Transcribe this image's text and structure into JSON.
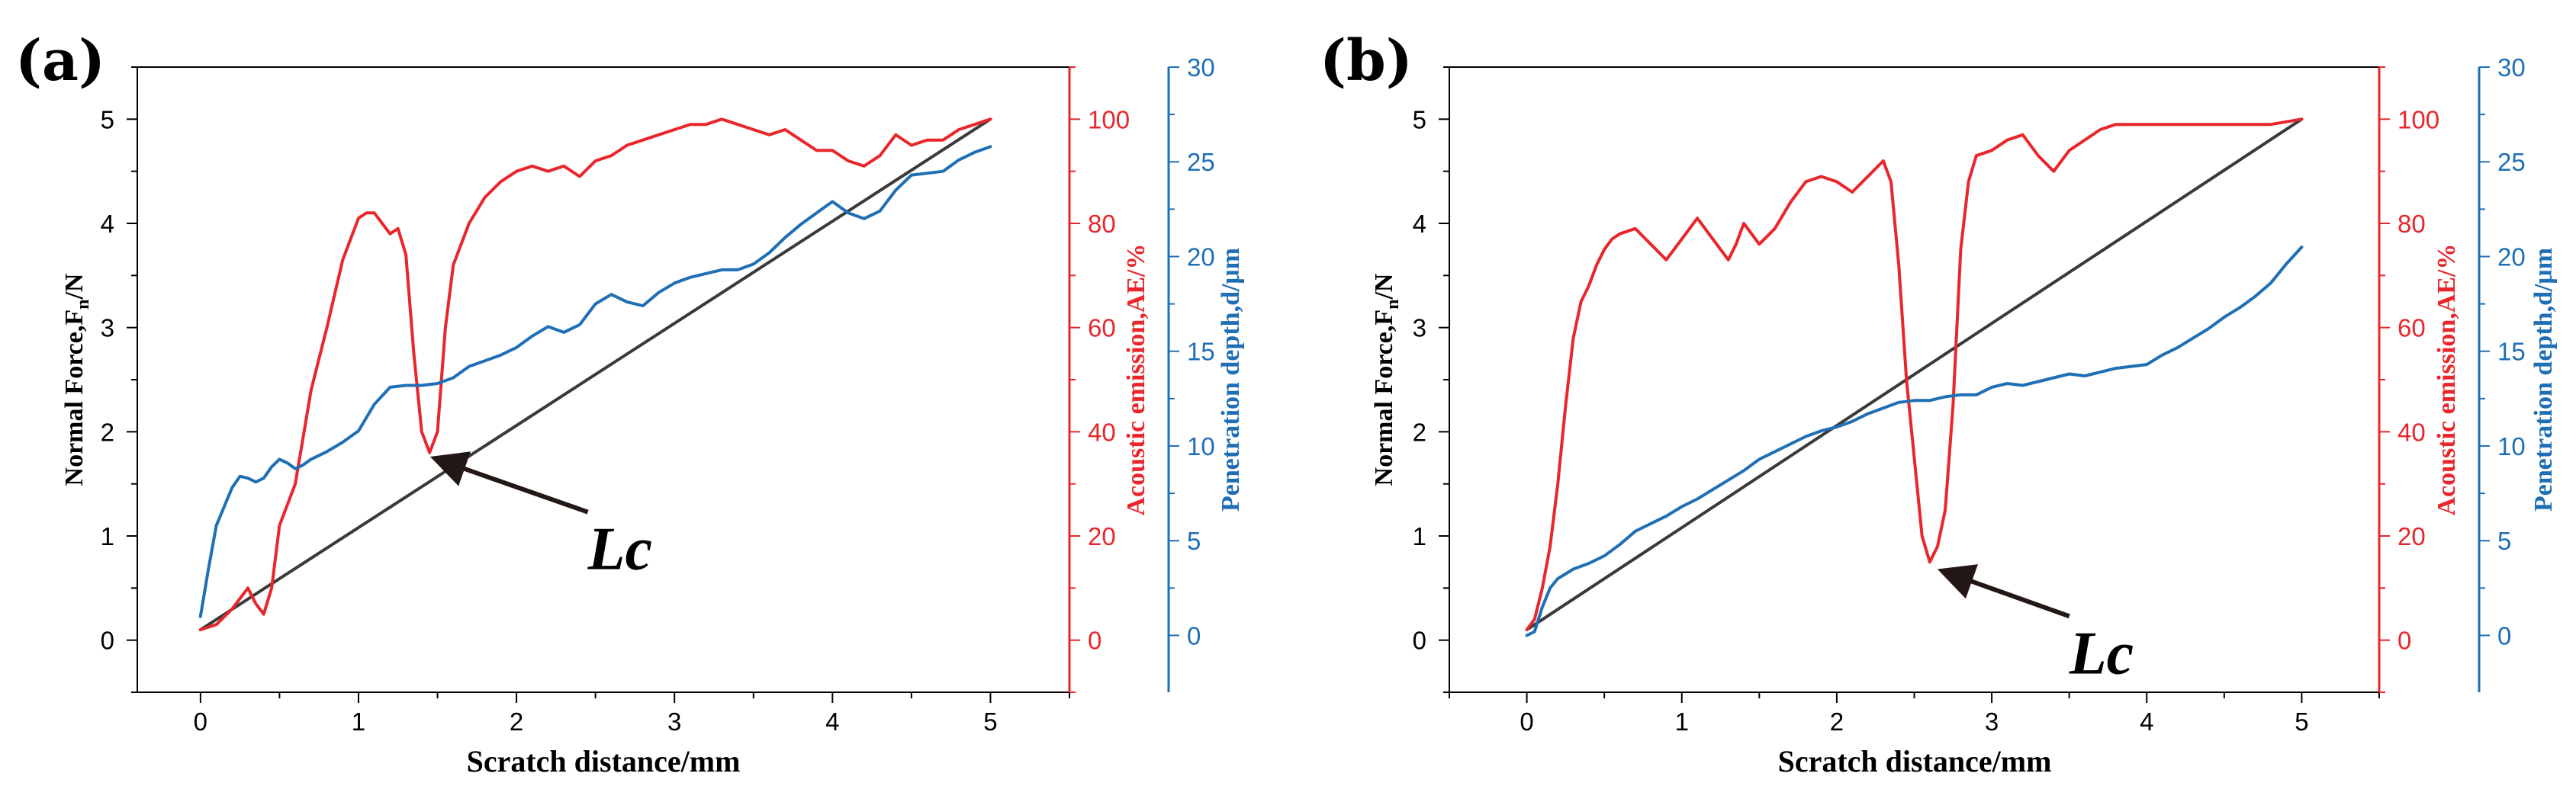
{
  "colors": {
    "normal_force": "#3a3a3a",
    "acoustic": "#e8262b",
    "depth": "#1f6fb5",
    "axis": "#000000",
    "arrow": "#231815"
  },
  "chart_data": [
    {
      "panel": "(a)",
      "type": "line",
      "xlabel": "Scratch distance/mm",
      "ylabel_left": "Normal Force,Fn/N",
      "ylabel_left_main": "Normal Force,F",
      "ylabel_left_sub": "n",
      "ylabel_left_tail": "/N",
      "ylabel_right1": "Acoustic emission,AE/%",
      "ylabel_right2": "Penetration depth,d/μm",
      "xlim": [
        -0.4,
        5.5
      ],
      "ylim_left": [
        -0.5,
        5.5
      ],
      "ylim_right1": [
        -10,
        110
      ],
      "ylim_right2": [
        -3,
        30
      ],
      "xticks": [
        0,
        1,
        2,
        3,
        4,
        5
      ],
      "yticks_left": [
        0,
        1,
        2,
        3,
        4,
        5
      ],
      "yticks_right1": [
        0,
        20,
        40,
        60,
        80,
        100
      ],
      "yticks_right2": [
        0,
        5,
        10,
        15,
        20,
        25,
        30
      ],
      "annotation": "Lc",
      "annotation_target": [
        1.45,
        1.82
      ],
      "annotation_text_pos": [
        2.5,
        0.9
      ],
      "series": [
        {
          "name": "Normal Force",
          "axis": "left",
          "x": [
            0.0,
            5.0
          ],
          "y": [
            0.1,
            5.0
          ]
        },
        {
          "name": "Acoustic emission",
          "axis": "right1",
          "x": [
            0.0,
            0.1,
            0.2,
            0.3,
            0.35,
            0.4,
            0.45,
            0.5,
            0.6,
            0.7,
            0.8,
            0.9,
            1.0,
            1.05,
            1.1,
            1.2,
            1.25,
            1.3,
            1.35,
            1.4,
            1.45,
            1.5,
            1.55,
            1.6,
            1.7,
            1.8,
            1.9,
            2.0,
            2.1,
            2.2,
            2.3,
            2.4,
            2.5,
            2.6,
            2.7,
            2.8,
            2.9,
            3.0,
            3.1,
            3.2,
            3.3,
            3.4,
            3.5,
            3.6,
            3.7,
            3.8,
            3.9,
            4.0,
            4.1,
            4.2,
            4.3,
            4.4,
            4.5,
            4.6,
            4.7,
            4.8,
            4.9,
            5.0
          ],
          "y": [
            2,
            3,
            6,
            10,
            7,
            5,
            10,
            22,
            30,
            48,
            60,
            73,
            81,
            82,
            82,
            78,
            79,
            74,
            55,
            40,
            36,
            40,
            60,
            72,
            80,
            85,
            88,
            90,
            91,
            90,
            91,
            89,
            92,
            93,
            95,
            96,
            97,
            98,
            99,
            99,
            100,
            99,
            98,
            97,
            98,
            96,
            94,
            94,
            92,
            91,
            93,
            97,
            95,
            96,
            96,
            98,
            99,
            100
          ]
        },
        {
          "name": "Penetration depth",
          "axis": "right2",
          "x": [
            0.0,
            0.05,
            0.1,
            0.15,
            0.2,
            0.25,
            0.3,
            0.35,
            0.4,
            0.45,
            0.5,
            0.55,
            0.6,
            0.65,
            0.7,
            0.8,
            0.9,
            1.0,
            1.1,
            1.2,
            1.3,
            1.4,
            1.5,
            1.6,
            1.7,
            1.8,
            1.9,
            2.0,
            2.1,
            2.2,
            2.3,
            2.4,
            2.5,
            2.6,
            2.7,
            2.8,
            2.9,
            3.0,
            3.1,
            3.2,
            3.3,
            3.4,
            3.5,
            3.6,
            3.7,
            3.8,
            3.9,
            4.0,
            4.05,
            4.1,
            4.2,
            4.3,
            4.4,
            4.5,
            4.6,
            4.7,
            4.8,
            4.9,
            5.0
          ],
          "y": [
            1.0,
            3.5,
            5.8,
            6.8,
            7.8,
            8.4,
            8.3,
            8.1,
            8.3,
            8.9,
            9.3,
            9.1,
            8.8,
            9.0,
            9.3,
            9.7,
            10.2,
            10.8,
            12.2,
            13.1,
            13.2,
            13.2,
            13.3,
            13.6,
            14.2,
            14.5,
            14.8,
            15.2,
            15.8,
            16.3,
            16.0,
            16.4,
            17.5,
            18.0,
            17.6,
            17.4,
            18.1,
            18.6,
            18.9,
            19.1,
            19.3,
            19.3,
            19.6,
            20.2,
            21.0,
            21.7,
            22.3,
            22.9,
            22.6,
            22.3,
            22.0,
            22.4,
            23.5,
            24.3,
            24.4,
            24.5,
            25.1,
            25.5,
            25.8
          ]
        }
      ]
    },
    {
      "panel": "(b)",
      "type": "line",
      "xlabel": "Scratch distance/mm",
      "ylabel_left": "Normal Force,Fn/N",
      "ylabel_left_main": "Normal Force,F",
      "ylabel_left_sub": "n",
      "ylabel_left_tail": "/N",
      "ylabel_right1": "Acoustic emission,AE/%",
      "ylabel_right2": "Penetration depth,d/μm",
      "xlim": [
        -0.5,
        5.5
      ],
      "ylim_left": [
        -0.5,
        5.5
      ],
      "ylim_right1": [
        -10,
        110
      ],
      "ylim_right2": [
        -3,
        30
      ],
      "xticks": [
        0,
        1,
        2,
        3,
        4,
        5
      ],
      "yticks_left": [
        0,
        1,
        2,
        3,
        4,
        5
      ],
      "yticks_right1": [
        0,
        20,
        40,
        60,
        80,
        100
      ],
      "yticks_right2": [
        0,
        5,
        10,
        15,
        20,
        25,
        30
      ],
      "annotation": "Lc",
      "annotation_target": [
        2.65,
        0.75
      ],
      "annotation_text_pos": [
        3.55,
        -0.1
      ],
      "series": [
        {
          "name": "Normal Force",
          "axis": "left",
          "x": [
            0.0,
            5.0
          ],
          "y": [
            0.1,
            5.0
          ]
        },
        {
          "name": "Acoustic emission",
          "axis": "right1",
          "x": [
            0.0,
            0.05,
            0.1,
            0.15,
            0.2,
            0.25,
            0.3,
            0.35,
            0.4,
            0.45,
            0.5,
            0.55,
            0.6,
            0.7,
            0.8,
            0.9,
            1.0,
            1.1,
            1.2,
            1.3,
            1.35,
            1.4,
            1.45,
            1.5,
            1.6,
            1.7,
            1.8,
            1.9,
            2.0,
            2.1,
            2.2,
            2.3,
            2.35,
            2.4,
            2.45,
            2.5,
            2.55,
            2.6,
            2.65,
            2.7,
            2.75,
            2.8,
            2.85,
            2.9,
            3.0,
            3.1,
            3.2,
            3.3,
            3.4,
            3.5,
            3.6,
            3.7,
            3.8,
            4.0,
            4.2,
            4.4,
            4.6,
            4.8,
            5.0
          ],
          "y": [
            2,
            4,
            10,
            18,
            30,
            45,
            58,
            65,
            68,
            72,
            75,
            77,
            78,
            79,
            76,
            73,
            77,
            81,
            77,
            73,
            76,
            80,
            78,
            76,
            79,
            84,
            88,
            89,
            88,
            86,
            89,
            92,
            88,
            72,
            50,
            35,
            20,
            15,
            18,
            25,
            45,
            75,
            88,
            93,
            94,
            96,
            97,
            93,
            90,
            94,
            96,
            98,
            99,
            99,
            99,
            99,
            99,
            99,
            100
          ]
        },
        {
          "name": "Penetration depth",
          "axis": "right2",
          "x": [
            0.0,
            0.05,
            0.1,
            0.15,
            0.2,
            0.3,
            0.4,
            0.5,
            0.6,
            0.7,
            0.8,
            0.9,
            1.0,
            1.1,
            1.2,
            1.3,
            1.4,
            1.5,
            1.6,
            1.7,
            1.8,
            1.9,
            2.0,
            2.1,
            2.2,
            2.3,
            2.4,
            2.5,
            2.6,
            2.7,
            2.8,
            2.9,
            3.0,
            3.1,
            3.2,
            3.3,
            3.4,
            3.5,
            3.6,
            3.7,
            3.8,
            3.9,
            4.0,
            4.1,
            4.2,
            4.3,
            4.4,
            4.5,
            4.6,
            4.7,
            4.8,
            4.9,
            5.0
          ],
          "y": [
            0.0,
            0.2,
            1.5,
            2.5,
            3.0,
            3.5,
            3.8,
            4.2,
            4.8,
            5.5,
            5.9,
            6.3,
            6.8,
            7.2,
            7.7,
            8.2,
            8.7,
            9.3,
            9.7,
            10.1,
            10.5,
            10.8,
            11.0,
            11.3,
            11.7,
            12.0,
            12.3,
            12.4,
            12.4,
            12.6,
            12.7,
            12.7,
            13.1,
            13.3,
            13.2,
            13.4,
            13.6,
            13.8,
            13.7,
            13.9,
            14.1,
            14.2,
            14.3,
            14.8,
            15.2,
            15.7,
            16.2,
            16.8,
            17.3,
            17.9,
            18.6,
            19.6,
            20.5
          ]
        }
      ]
    }
  ]
}
